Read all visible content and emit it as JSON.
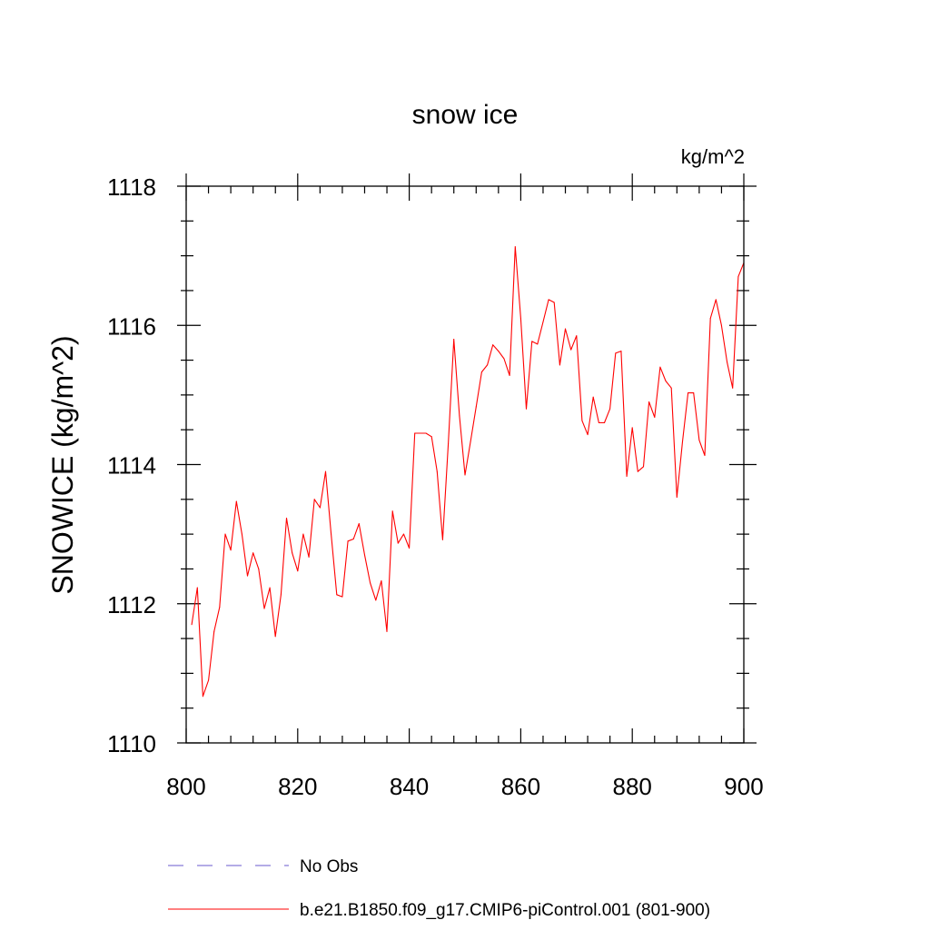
{
  "chart_data": {
    "type": "line",
    "title": "snow ice",
    "units": "kg/m^2",
    "ylabel": "SNOWICE  (kg/m^2)",
    "xlabel": "",
    "xlim": [
      800,
      900
    ],
    "ylim": [
      1110,
      1118
    ],
    "x_ticks": [
      800,
      820,
      840,
      860,
      880,
      900
    ],
    "x_tick_labels": [
      "800",
      "820",
      "840",
      "860",
      "880",
      "900"
    ],
    "y_ticks": [
      1110,
      1112,
      1114,
      1116,
      1118
    ],
    "y_tick_labels": [
      "1110",
      "1112",
      "1114",
      "1116",
      "1118"
    ],
    "y_minor_step": 0.5,
    "x_minor_step": 4,
    "legend": [
      {
        "label": "No Obs",
        "color": "#6a5acd",
        "style": "dashed"
      },
      {
        "label": "b.e21.B1850.f09_g17.CMIP6-piControl.001 (801-900)",
        "color": "#ff0000",
        "style": "solid"
      }
    ],
    "series": [
      {
        "name": "b.e21.B1850.f09_g17.CMIP6-piControl.001 (801-900)",
        "color": "#ff0000",
        "x": [
          801,
          802,
          803,
          804,
          805,
          806,
          807,
          808,
          809,
          810,
          811,
          812,
          813,
          814,
          815,
          816,
          817,
          818,
          819,
          820,
          821,
          822,
          823,
          824,
          825,
          826,
          827,
          828,
          829,
          830,
          831,
          832,
          833,
          834,
          835,
          836,
          837,
          838,
          839,
          840,
          841,
          842,
          843,
          844,
          845,
          846,
          847,
          848,
          849,
          850,
          851,
          852,
          853,
          854,
          855,
          856,
          857,
          858,
          859,
          860,
          861,
          862,
          863,
          864,
          865,
          866,
          867,
          868,
          869,
          870,
          871,
          872,
          873,
          874,
          875,
          876,
          877,
          878,
          879,
          880,
          881,
          882,
          883,
          884,
          885,
          886,
          887,
          888,
          889,
          890,
          891,
          892,
          893,
          894,
          895,
          896,
          897,
          898,
          899,
          900
        ],
        "values": [
          1111.7,
          1112.23,
          1110.67,
          1110.9,
          1111.6,
          1111.95,
          1113.0,
          1112.77,
          1113.47,
          1113.0,
          1112.4,
          1112.73,
          1112.5,
          1111.93,
          1112.23,
          1111.53,
          1112.13,
          1113.23,
          1112.73,
          1112.47,
          1113.0,
          1112.67,
          1113.5,
          1113.38,
          1113.9,
          1113.0,
          1112.13,
          1112.1,
          1112.9,
          1112.93,
          1113.15,
          1112.7,
          1112.3,
          1112.05,
          1112.33,
          1111.6,
          1113.33,
          1112.87,
          1113.0,
          1112.8,
          1114.45,
          1114.45,
          1114.45,
          1114.4,
          1113.9,
          1112.92,
          1114.3,
          1115.8,
          1114.7,
          1113.85,
          1114.33,
          1114.83,
          1115.33,
          1115.43,
          1115.72,
          1115.63,
          1115.52,
          1115.28,
          1117.13,
          1116.1,
          1114.8,
          1115.77,
          1115.73,
          1116.05,
          1116.37,
          1116.33,
          1115.43,
          1115.95,
          1115.65,
          1115.85,
          1114.63,
          1114.43,
          1114.97,
          1114.6,
          1114.6,
          1114.8,
          1115.6,
          1115.63,
          1113.83,
          1114.53,
          1113.9,
          1113.97,
          1114.9,
          1114.68,
          1115.4,
          1115.2,
          1115.1,
          1113.53,
          1114.33,
          1115.03,
          1115.03,
          1114.35,
          1114.13,
          1116.1,
          1116.37,
          1116.0,
          1115.47,
          1115.1,
          1116.7,
          1116.9
        ]
      }
    ]
  }
}
